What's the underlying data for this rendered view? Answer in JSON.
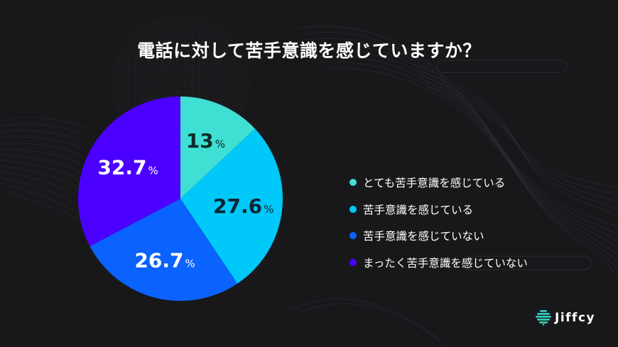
{
  "title": "電話に対して苦手意識を感じていますか？",
  "chart_data": {
    "type": "pie",
    "title": "電話に対して苦手意識を感じていますか？",
    "categories": [
      "とても苦手意識を感じている",
      "苦手意識を感じている",
      "苦手意識を感じていない",
      "まったく苦手意識を感じていない"
    ],
    "values": [
      13,
      27.6,
      26.7,
      32.7
    ],
    "unit": "%",
    "labels": [
      "13",
      "27.6",
      "26.7",
      "32.7"
    ],
    "colors": [
      "#3fdfd3",
      "#00c8f8",
      "#0a62ff",
      "#4b00ff"
    ],
    "label_colors": [
      "#0e2a2a",
      "#0c2530",
      "#ffffff",
      "#ffffff"
    ],
    "start_angle_deg": 0,
    "direction": "clockwise",
    "legend_position": "right"
  },
  "legend": {
    "items": [
      {
        "label": "とても苦手意識を感じている",
        "color": "#3fdfd3"
      },
      {
        "label": "苦手意識を感じている",
        "color": "#00c8f8"
      },
      {
        "label": "苦手意識を感じていない",
        "color": "#0a62ff"
      },
      {
        "label": "まったく苦手意識を感じていない",
        "color": "#4b00ff"
      }
    ]
  },
  "percent_sign": "%",
  "brand": {
    "name": "Jiffcy"
  }
}
